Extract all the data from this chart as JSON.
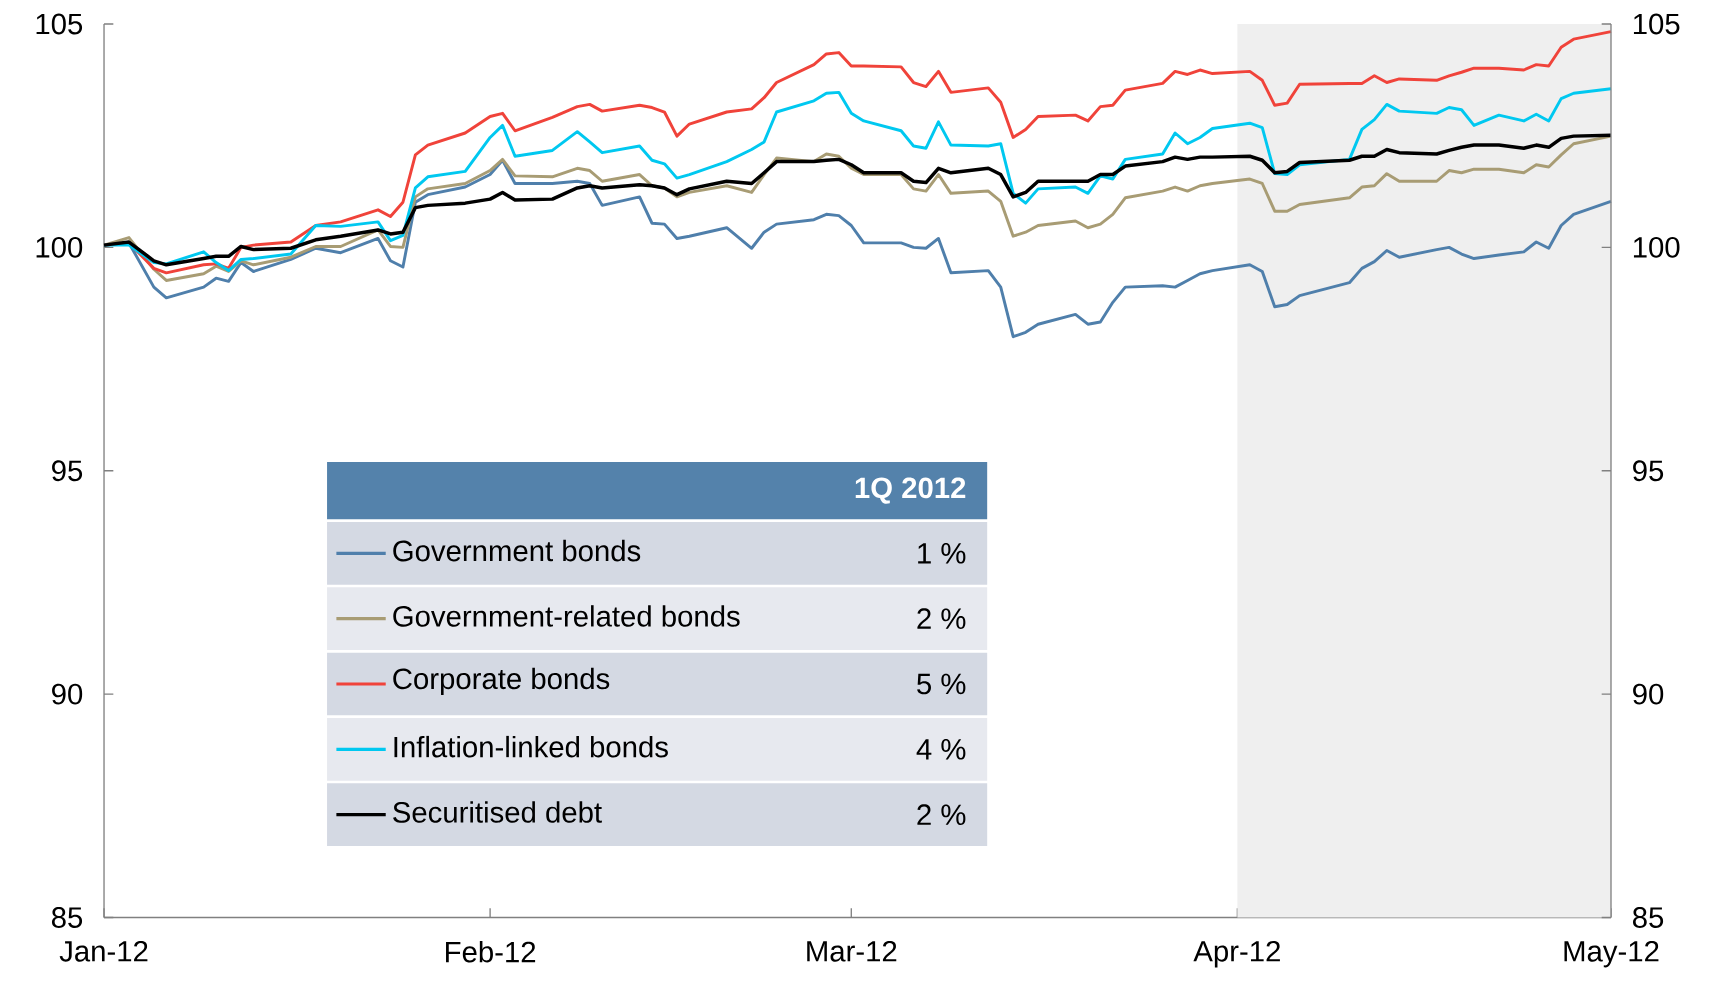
{
  "chart_data": {
    "type": "line",
    "legend": "bottom left",
    "legend_title": "1Q 2012",
    "annotations": [
      "1 %",
      "2 %",
      "5 %",
      "4 %",
      "2 %"
    ],
    "x": [
      "2012-01-01",
      "2012-01-03",
      "2012-01-05",
      "2012-01-06",
      "2012-01-09",
      "2012-01-10",
      "2012-01-11",
      "2012-01-12",
      "2012-01-13",
      "2012-01-16",
      "2012-01-18",
      "2012-01-20",
      "2012-01-23",
      "2012-01-24",
      "2012-01-25",
      "2012-01-26",
      "2012-01-27",
      "2012-01-30",
      "2012-02-01",
      "2012-02-02",
      "2012-02-03",
      "2012-02-06",
      "2012-02-08",
      "2012-02-09",
      "2012-02-10",
      "2012-02-13",
      "2012-02-14",
      "2012-02-15",
      "2012-02-16",
      "2012-02-17",
      "2012-02-20",
      "2012-02-22",
      "2012-02-23",
      "2012-02-24",
      "2012-02-27",
      "2012-02-28",
      "2012-02-29",
      "2012-03-01",
      "2012-03-02",
      "2012-03-05",
      "2012-03-06",
      "2012-03-07",
      "2012-03-08",
      "2012-03-09",
      "2012-03-12",
      "2012-03-13",
      "2012-03-14",
      "2012-03-15",
      "2012-03-16",
      "2012-03-19",
      "2012-03-20",
      "2012-03-21",
      "2012-03-22",
      "2012-03-23",
      "2012-03-26",
      "2012-03-27",
      "2012-03-28",
      "2012-03-29",
      "2012-03-30",
      "2012-04-02",
      "2012-04-03",
      "2012-04-04",
      "2012-04-05",
      "2012-04-06",
      "2012-04-10",
      "2012-04-11",
      "2012-04-12",
      "2012-04-13",
      "2012-04-14",
      "2012-04-17",
      "2012-04-18",
      "2012-04-19",
      "2012-04-20",
      "2012-04-22",
      "2012-04-24",
      "2012-04-25",
      "2012-04-26",
      "2012-04-27",
      "2012-04-28",
      "2012-05-01"
    ],
    "series": [
      {
        "name": "Government bonds",
        "color": "#4f7fab",
        "values": [
          100.05,
          100.1,
          99.11,
          98.87,
          99.11,
          99.31,
          99.24,
          99.66,
          99.46,
          99.73,
          99.98,
          99.88,
          100.2,
          99.7,
          99.56,
          101.01,
          101.18,
          101.35,
          101.63,
          101.95,
          101.43,
          101.43,
          101.48,
          101.43,
          100.94,
          101.13,
          100.54,
          100.52,
          100.2,
          100.25,
          100.44,
          99.98,
          100.34,
          100.52,
          100.62,
          100.74,
          100.71,
          100.49,
          100.1,
          100.1,
          100.0,
          99.98,
          100.2,
          99.43,
          99.48,
          99.11,
          98.0,
          98.1,
          98.28,
          98.5,
          98.28,
          98.33,
          98.77,
          99.11,
          99.14,
          99.11,
          99.26,
          99.41,
          99.48,
          99.61,
          99.46,
          98.67,
          98.72,
          98.92,
          99.21,
          99.53,
          99.68,
          99.93,
          99.78,
          99.95,
          100.0,
          99.85,
          99.75,
          99.83,
          99.9,
          100.12,
          99.98,
          100.49,
          100.74,
          101.03
        ]
      },
      {
        "name": "Government-related bonds",
        "color": "#a89c74",
        "values": [
          100.05,
          100.22,
          99.51,
          99.26,
          99.41,
          99.58,
          99.46,
          99.7,
          99.61,
          99.78,
          100.02,
          100.02,
          100.39,
          100.02,
          100.0,
          101.13,
          101.31,
          101.43,
          101.72,
          101.97,
          101.6,
          101.58,
          101.77,
          101.72,
          101.48,
          101.63,
          101.38,
          101.33,
          101.13,
          101.23,
          101.38,
          101.23,
          101.63,
          102.0,
          101.92,
          102.09,
          102.04,
          101.77,
          101.63,
          101.63,
          101.31,
          101.26,
          101.63,
          101.21,
          101.26,
          101.03,
          100.25,
          100.34,
          100.49,
          100.59,
          100.44,
          100.52,
          100.74,
          101.11,
          101.26,
          101.35,
          101.26,
          101.38,
          101.43,
          101.53,
          101.43,
          100.81,
          100.81,
          100.96,
          101.11,
          101.35,
          101.38,
          101.65,
          101.48,
          101.48,
          101.72,
          101.67,
          101.75,
          101.75,
          101.67,
          101.85,
          101.8,
          102.07,
          102.32,
          102.49
        ]
      },
      {
        "name": "Corporate bonds",
        "color": "#f0433a",
        "values": [
          100.05,
          100.1,
          99.53,
          99.43,
          99.61,
          99.63,
          99.53,
          100.0,
          100.05,
          100.12,
          100.49,
          100.57,
          100.84,
          100.69,
          101.01,
          102.07,
          102.29,
          102.56,
          102.93,
          103.0,
          102.61,
          102.91,
          103.15,
          103.2,
          103.05,
          103.18,
          103.13,
          103.03,
          102.49,
          102.76,
          103.03,
          103.1,
          103.35,
          103.69,
          104.09,
          104.33,
          104.36,
          104.06,
          104.06,
          104.04,
          103.69,
          103.6,
          103.94,
          103.47,
          103.57,
          103.25,
          102.46,
          102.64,
          102.93,
          102.96,
          102.83,
          103.15,
          103.18,
          103.52,
          103.67,
          103.94,
          103.87,
          103.97,
          103.89,
          103.94,
          103.74,
          103.18,
          103.23,
          103.65,
          103.67,
          103.67,
          103.84,
          103.69,
          103.77,
          103.74,
          103.84,
          103.92,
          104.01,
          104.01,
          103.97,
          104.09,
          104.06,
          104.48,
          104.66,
          104.83
        ]
      },
      {
        "name": "Inflation-linked bonds",
        "color": "#00c8f0",
        "values": [
          100.05,
          100.05,
          99.66,
          99.63,
          99.9,
          99.66,
          99.48,
          99.73,
          99.75,
          99.85,
          100.49,
          100.47,
          100.57,
          100.15,
          100.27,
          101.33,
          101.58,
          101.7,
          102.46,
          102.73,
          102.04,
          102.17,
          102.59,
          102.36,
          102.12,
          102.27,
          101.95,
          101.87,
          101.55,
          101.63,
          101.92,
          102.19,
          102.36,
          103.03,
          103.28,
          103.45,
          103.47,
          103.0,
          102.83,
          102.61,
          102.27,
          102.22,
          102.81,
          102.29,
          102.27,
          102.32,
          101.21,
          100.99,
          101.31,
          101.35,
          101.21,
          101.6,
          101.53,
          101.97,
          102.09,
          102.56,
          102.32,
          102.46,
          102.66,
          102.78,
          102.68,
          101.65,
          101.63,
          101.85,
          101.97,
          102.64,
          102.86,
          103.2,
          103.05,
          103.0,
          103.13,
          103.08,
          102.73,
          102.96,
          102.83,
          102.98,
          102.83,
          103.33,
          103.45,
          103.55
        ]
      },
      {
        "name": "Securitised debt",
        "color": "#000000",
        "values": [
          100.05,
          100.12,
          99.7,
          99.61,
          99.75,
          99.8,
          99.8,
          100.02,
          99.95,
          99.98,
          100.17,
          100.25,
          100.39,
          100.3,
          100.34,
          100.89,
          100.94,
          100.99,
          101.08,
          101.23,
          101.06,
          101.08,
          101.33,
          101.38,
          101.33,
          101.4,
          101.38,
          101.33,
          101.18,
          101.31,
          101.48,
          101.43,
          101.67,
          101.92,
          101.92,
          101.95,
          101.97,
          101.85,
          101.67,
          101.67,
          101.48,
          101.45,
          101.77,
          101.67,
          101.77,
          101.63,
          101.13,
          101.23,
          101.48,
          101.48,
          101.48,
          101.63,
          101.63,
          101.82,
          101.92,
          102.02,
          101.97,
          102.02,
          102.02,
          102.04,
          101.95,
          101.67,
          101.7,
          101.9,
          101.95,
          102.04,
          102.04,
          102.19,
          102.12,
          102.09,
          102.17,
          102.24,
          102.29,
          102.29,
          102.22,
          102.29,
          102.24,
          102.44,
          102.49,
          102.51
        ]
      }
    ],
    "xlim": [
      "2012-01-01",
      "2012-05-01"
    ],
    "xticks": [
      {
        "value": "2012-01-01",
        "label": "Jan-12"
      },
      {
        "value": "2012-02-01",
        "label": "Feb-12"
      },
      {
        "value": "2012-03-01",
        "label": "Mar-12"
      },
      {
        "value": "2012-04-01",
        "label": "Apr-12"
      },
      {
        "value": "2012-05-01",
        "label": "May-12"
      }
    ],
    "ylim": [
      85,
      105
    ],
    "yticks": [
      85,
      90,
      95,
      100,
      105
    ],
    "y2lim": [
      85,
      105
    ],
    "y2ticks": [
      85,
      90,
      95,
      100,
      105
    ],
    "bands": [
      {
        "axis": "x",
        "from": "2012-04-01",
        "to": "2012-05-01",
        "color": "#efefef"
      }
    ]
  }
}
